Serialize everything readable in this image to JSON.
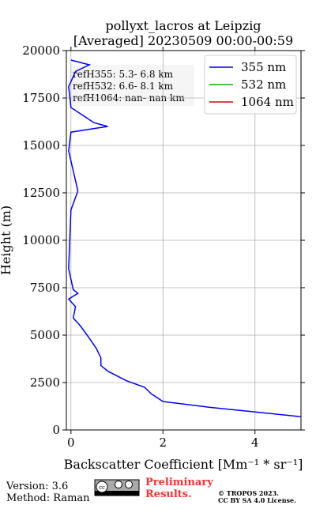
{
  "chart_data": {
    "type": "line",
    "title": "pollyxt_lacros at Leipzig",
    "subtitle": "[Averaged] 20230509 00:00-00:59",
    "x_label": "Backscatter Coefficient [Mm⁻¹ * sr⁻¹]",
    "y_label": "Height (m)",
    "xlim": [
      -0.1,
      5
    ],
    "xticks": [
      0,
      2,
      4
    ],
    "ylim": [
      0,
      20000
    ],
    "yticks": [
      0,
      2500,
      5000,
      7500,
      10000,
      12500,
      15000,
      17500,
      20000
    ],
    "grid": true,
    "legend": "upper right",
    "heights": [
      700,
      900,
      1200,
      1500,
      1900,
      2250,
      2600,
      3100,
      3400,
      3800,
      4300,
      4900,
      5500,
      5900,
      6500,
      6900,
      7200,
      7400,
      8500,
      11600,
      12600,
      14700,
      15700,
      16000,
      16200,
      16600,
      17000,
      18100,
      18900,
      19250,
      19500
    ],
    "series": [
      {
        "name": "355 nm",
        "color": "#0000ff",
        "values": [
          5.0,
          4.2,
          3.0,
          2.0,
          1.75,
          1.6,
          1.2,
          0.8,
          0.65,
          0.65,
          0.55,
          0.38,
          0.2,
          0.05,
          0.1,
          -0.05,
          0.15,
          0.05,
          -0.05,
          0.0,
          0.15,
          -0.05,
          0.0,
          0.8,
          0.5,
          0.25,
          0.0,
          -0.05,
          0.1,
          0.4,
          0.0
        ]
      },
      {
        "name": "532 nm",
        "color": "#00b000",
        "values": [
          null,
          null,
          null,
          null,
          null,
          null,
          null,
          null,
          null,
          null,
          null,
          null,
          null,
          null,
          null,
          null,
          null,
          null,
          null,
          null,
          null,
          null,
          null,
          null,
          null,
          null,
          null,
          null,
          null,
          null,
          null
        ]
      },
      {
        "name": "1064 nm",
        "color": "#e00000",
        "values": [
          null,
          null,
          null,
          null,
          null,
          null,
          null,
          null,
          null,
          null,
          null,
          null,
          null,
          null,
          null,
          null,
          null,
          null,
          null,
          null,
          null,
          null,
          null,
          null,
          null,
          null,
          null,
          null,
          null,
          null,
          null
        ]
      }
    ],
    "annotations": [
      "refH355:  5.3- 6.8 km",
      "refH532:  6.6- 8.1 km",
      "refH1064:  nan- nan km"
    ]
  },
  "footer": {
    "version": "Version: 3.6",
    "method": "Method: Raman",
    "preliminary": "Preliminary Results.",
    "copyright": "© TROPOS 2023.",
    "license": "CC BY SA 4.0 License."
  }
}
